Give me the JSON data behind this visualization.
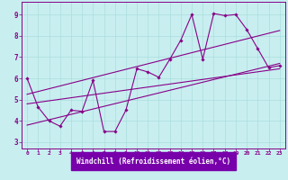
{
  "background_color": "#c8eef0",
  "grid_color": "#aadddd",
  "line_color": "#880088",
  "marker_color": "#880088",
  "xlabel": "Windchill (Refroidissement éolien,°C)",
  "xlabel_bg": "#6600aa",
  "xlim": [
    -0.5,
    23.5
  ],
  "ylim": [
    2.7,
    9.6
  ],
  "xticks": [
    0,
    1,
    2,
    3,
    4,
    5,
    6,
    7,
    8,
    9,
    10,
    11,
    12,
    13,
    14,
    15,
    16,
    17,
    18,
    19,
    20,
    21,
    22,
    23
  ],
  "yticks": [
    3,
    4,
    5,
    6,
    7,
    8,
    9
  ],
  "scatter_x": [
    0,
    1,
    2,
    3,
    4,
    5,
    6,
    7,
    8,
    9,
    10,
    11,
    12,
    13,
    14,
    15,
    16,
    17,
    18,
    19,
    20,
    21,
    22,
    23
  ],
  "scatter_y": [
    6.0,
    4.65,
    4.0,
    3.75,
    4.5,
    4.45,
    5.9,
    3.5,
    3.5,
    4.5,
    6.45,
    6.3,
    6.05,
    6.9,
    7.8,
    9.0,
    6.9,
    9.05,
    8.95,
    9.0,
    8.3,
    7.4,
    6.5,
    6.6
  ],
  "regr_line1_x": [
    0,
    23
  ],
  "regr_line1_y": [
    4.8,
    6.45
  ],
  "regr_line2_x": [
    0,
    23
  ],
  "regr_line2_y": [
    5.25,
    8.25
  ],
  "regr_line3_x": [
    0,
    23
  ],
  "regr_line3_y": [
    3.8,
    6.7
  ]
}
